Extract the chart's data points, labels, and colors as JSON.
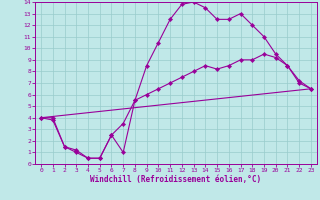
{
  "xlabel": "Windchill (Refroidissement éolien,°C)",
  "bg_color": "#c0e8e8",
  "line_color": "#990099",
  "grid_color": "#99cccc",
  "xlim": [
    -0.5,
    23.5
  ],
  "ylim": [
    0,
    14
  ],
  "xticks": [
    0,
    1,
    2,
    3,
    4,
    5,
    6,
    7,
    8,
    9,
    10,
    11,
    12,
    13,
    14,
    15,
    16,
    17,
    18,
    19,
    20,
    21,
    22,
    23
  ],
  "yticks": [
    0,
    1,
    2,
    3,
    4,
    5,
    6,
    7,
    8,
    9,
    10,
    11,
    12,
    13,
    14
  ],
  "line1_x": [
    0,
    1,
    2,
    3,
    4,
    5,
    6,
    7,
    8,
    9,
    10,
    11,
    12,
    13,
    14,
    15,
    16,
    17,
    18,
    19,
    20,
    21,
    22,
    23
  ],
  "line1_y": [
    4,
    4,
    1.5,
    1,
    0.5,
    0.5,
    2.5,
    1.0,
    5.5,
    8.5,
    10.5,
    12.5,
    13.8,
    14.0,
    13.5,
    12.5,
    12.5,
    13.0,
    12.0,
    11.0,
    9.5,
    8.5,
    7.0,
    6.5
  ],
  "line2_x": [
    0,
    1,
    2,
    3,
    4,
    5,
    6,
    7,
    8,
    9,
    10,
    11,
    12,
    13,
    14,
    15,
    16,
    17,
    18,
    19,
    20,
    21,
    22,
    23
  ],
  "line2_y": [
    4,
    3.8,
    1.5,
    1.2,
    0.5,
    0.5,
    2.5,
    3.5,
    5.5,
    6.0,
    6.5,
    7.0,
    7.5,
    8.0,
    8.5,
    8.2,
    8.5,
    9.0,
    9.0,
    9.5,
    9.2,
    8.5,
    7.2,
    6.5
  ],
  "line3_x": [
    0,
    23
  ],
  "line3_y": [
    4.0,
    6.5
  ]
}
